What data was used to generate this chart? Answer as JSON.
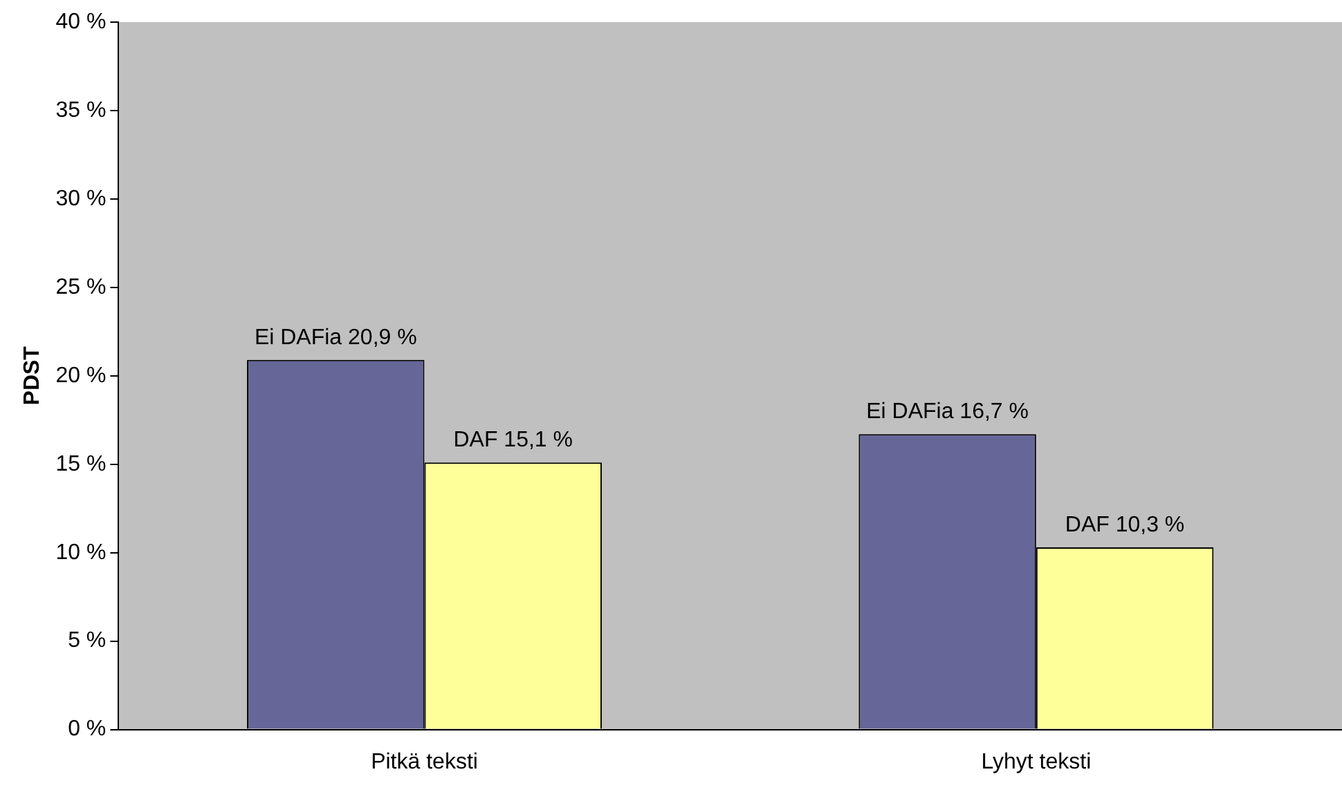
{
  "chart_data": {
    "type": "bar",
    "ylabel": "PDST",
    "categories": [
      "Pitkä teksti",
      "Lyhyt teksti"
    ],
    "series": [
      {
        "name": "Ei DAFia",
        "color": "#666699",
        "values": [
          20.9,
          16.7
        ],
        "value_labels": [
          "20,9 %",
          "16,7 %"
        ]
      },
      {
        "name": "DAF",
        "color": "#ffff99",
        "values": [
          15.1,
          10.3
        ],
        "value_labels": [
          "15,1 %",
          "10,3 %"
        ]
      }
    ],
    "ylim": [
      0,
      40
    ],
    "yticks": [
      {
        "value": 0,
        "label": "0 %"
      },
      {
        "value": 5,
        "label": "5 %"
      },
      {
        "value": 10,
        "label": "10 %"
      },
      {
        "value": 15,
        "label": "15 %"
      },
      {
        "value": 20,
        "label": "20 %"
      },
      {
        "value": 25,
        "label": "25 %"
      },
      {
        "value": 30,
        "label": "30 %"
      },
      {
        "value": 35,
        "label": "35 %"
      },
      {
        "value": 40,
        "label": "40 %"
      }
    ],
    "grid": false,
    "legend": false
  }
}
